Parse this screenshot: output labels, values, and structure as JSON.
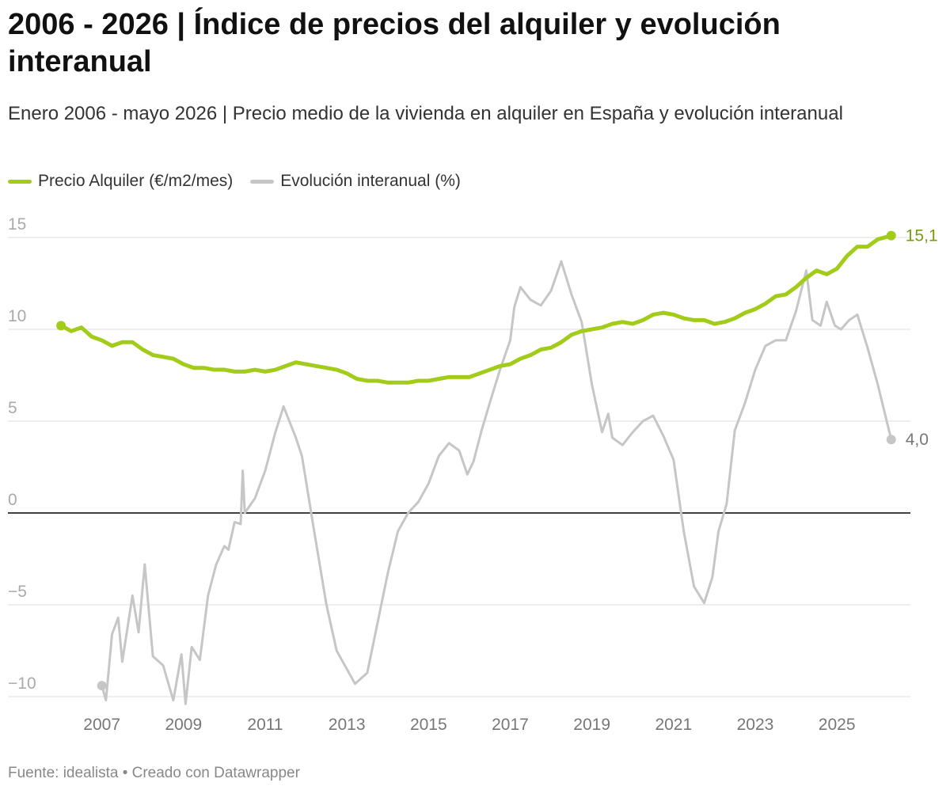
{
  "chart_data": {
    "type": "line",
    "title": "2006 - 2026 | Índice de precios del alquiler y evolución interanual",
    "subtitle": "Enero 2006 - mayo 2026 | Precio medio de la vivienda en alquiler en España y evolución interanual",
    "source": "Fuente: idealista • Creado con Datawrapper",
    "xlim": [
      2004.7,
      2026.8
    ],
    "xticks": [
      2007,
      2009,
      2011,
      2013,
      2015,
      2017,
      2019,
      2021,
      2023,
      2025
    ],
    "ylim": [
      -10,
      15
    ],
    "yticks": [
      {
        "value": -10,
        "label": "−10"
      },
      {
        "value": -5,
        "label": "−5"
      },
      0,
      5,
      10,
      15
    ],
    "grid": true,
    "series": [
      {
        "name": "Precio Alquiler (€/m2/mes)",
        "color": "#a2cb1a",
        "label_color": "#7a9b0e",
        "x": [
          2006.0,
          2006.25,
          2006.5,
          2006.75,
          2007.0,
          2007.25,
          2007.5,
          2007.75,
          2008.0,
          2008.25,
          2008.5,
          2008.75,
          2009.0,
          2009.25,
          2009.5,
          2009.75,
          2010.0,
          2010.25,
          2010.5,
          2010.75,
          2011.0,
          2011.25,
          2011.5,
          2011.75,
          2012.0,
          2012.25,
          2012.5,
          2012.75,
          2013.0,
          2013.25,
          2013.5,
          2013.75,
          2014.0,
          2014.25,
          2014.5,
          2014.75,
          2015.0,
          2015.25,
          2015.5,
          2015.75,
          2016.0,
          2016.25,
          2016.5,
          2016.75,
          2017.0,
          2017.25,
          2017.5,
          2017.75,
          2018.0,
          2018.25,
          2018.5,
          2018.75,
          2019.0,
          2019.25,
          2019.5,
          2019.75,
          2020.0,
          2020.25,
          2020.5,
          2020.75,
          2021.0,
          2021.25,
          2021.5,
          2021.75,
          2022.0,
          2022.25,
          2022.5,
          2022.75,
          2023.0,
          2023.25,
          2023.5,
          2023.75,
          2024.0,
          2024.25,
          2024.5,
          2024.75,
          2025.0,
          2025.25,
          2025.5,
          2025.75,
          2026.0,
          2026.33
        ],
        "values": [
          10.2,
          9.9,
          10.1,
          9.6,
          9.4,
          9.1,
          9.3,
          9.3,
          8.9,
          8.6,
          8.5,
          8.4,
          8.1,
          7.9,
          7.9,
          7.8,
          7.8,
          7.7,
          7.7,
          7.8,
          7.7,
          7.8,
          8.0,
          8.2,
          8.1,
          8.0,
          7.9,
          7.8,
          7.6,
          7.3,
          7.2,
          7.2,
          7.1,
          7.1,
          7.1,
          7.2,
          7.2,
          7.3,
          7.4,
          7.4,
          7.4,
          7.6,
          7.8,
          8.0,
          8.1,
          8.4,
          8.6,
          8.9,
          9.0,
          9.3,
          9.7,
          9.9,
          10.0,
          10.1,
          10.3,
          10.4,
          10.3,
          10.5,
          10.8,
          10.9,
          10.8,
          10.6,
          10.5,
          10.5,
          10.3,
          10.4,
          10.6,
          10.9,
          11.1,
          11.4,
          11.8,
          11.9,
          12.3,
          12.8,
          13.2,
          13.0,
          13.3,
          14.0,
          14.5,
          14.5,
          14.9,
          15.1
        ],
        "value_labels": [
          null,
          null,
          null,
          null,
          null,
          null,
          null,
          null,
          null,
          null,
          null,
          null,
          null,
          null,
          null,
          null,
          null,
          null,
          null,
          null,
          null,
          null,
          null,
          null,
          null,
          null,
          null,
          null,
          null,
          null,
          null,
          null,
          null,
          null,
          null,
          null,
          null,
          null,
          null,
          null,
          null,
          null,
          null,
          null,
          null,
          null,
          null,
          null,
          null,
          null,
          null,
          null,
          null,
          null,
          null,
          null,
          null,
          null,
          null,
          null,
          null,
          null,
          null,
          null,
          null,
          null,
          null,
          null,
          null,
          null,
          null,
          null,
          null,
          null,
          null,
          null,
          null,
          null,
          null,
          null,
          null,
          "15,1"
        ]
      },
      {
        "name": "Evolución interanual (%)",
        "color": "#c6c6c6",
        "label_color": "#777777",
        "x": [
          2007.0,
          2007.1,
          2007.25,
          2007.4,
          2007.5,
          2007.75,
          2007.9,
          2008.05,
          2008.25,
          2008.5,
          2008.75,
          2008.95,
          2009.05,
          2009.2,
          2009.4,
          2009.6,
          2009.8,
          2010.0,
          2010.1,
          2010.25,
          2010.4,
          2010.45,
          2010.5,
          2010.75,
          2011.0,
          2011.25,
          2011.45,
          2011.75,
          2011.9,
          2012.2,
          2012.5,
          2012.75,
          2013.0,
          2013.2,
          2013.5,
          2013.75,
          2014.0,
          2014.25,
          2014.5,
          2014.75,
          2015.0,
          2015.25,
          2015.5,
          2015.75,
          2015.95,
          2016.1,
          2016.3,
          2016.5,
          2016.75,
          2017.0,
          2017.1,
          2017.25,
          2017.5,
          2017.75,
          2018.0,
          2018.25,
          2018.5,
          2018.75,
          2019.0,
          2019.25,
          2019.4,
          2019.5,
          2019.75,
          2020.0,
          2020.25,
          2020.5,
          2020.75,
          2021.0,
          2021.25,
          2021.5,
          2021.75,
          2021.95,
          2022.1,
          2022.3,
          2022.5,
          2022.75,
          2023.0,
          2023.25,
          2023.5,
          2023.75,
          2024.0,
          2024.25,
          2024.4,
          2024.6,
          2024.75,
          2024.95,
          2025.1,
          2025.3,
          2025.5,
          2025.75,
          2026.0,
          2026.33
        ],
        "values": [
          -9.4,
          -10.2,
          -6.6,
          -5.7,
          -8.1,
          -4.5,
          -6.5,
          -2.8,
          -7.8,
          -8.3,
          -10.2,
          -7.7,
          -10.4,
          -7.3,
          -8.0,
          -4.5,
          -2.8,
          -1.8,
          -2.0,
          -0.5,
          -0.6,
          2.3,
          0.0,
          0.8,
          2.3,
          4.4,
          5.8,
          4.1,
          3.1,
          -1.0,
          -5.0,
          -7.5,
          -8.5,
          -9.3,
          -8.7,
          -6.0,
          -3.3,
          -1.0,
          0.0,
          0.6,
          1.6,
          3.1,
          3.8,
          3.4,
          2.1,
          2.8,
          4.5,
          6.0,
          7.8,
          9.4,
          11.2,
          12.3,
          11.6,
          11.3,
          12.1,
          13.7,
          11.9,
          10.4,
          7.0,
          4.4,
          5.4,
          4.1,
          3.7,
          4.4,
          5.0,
          5.3,
          4.2,
          2.9,
          -1.0,
          -4.0,
          -4.9,
          -3.5,
          -1.0,
          0.5,
          4.5,
          6.0,
          7.8,
          9.1,
          9.4,
          9.4,
          11.0,
          13.2,
          10.5,
          10.2,
          11.5,
          10.2,
          10.0,
          10.5,
          10.8,
          9.0,
          7.0,
          4.0
        ],
        "value_labels": [
          null,
          null,
          null,
          null,
          null,
          null,
          null,
          null,
          null,
          null,
          null,
          null,
          null,
          null,
          null,
          null,
          null,
          null,
          null,
          null,
          null,
          null,
          null,
          null,
          null,
          null,
          null,
          null,
          null,
          null,
          null,
          null,
          null,
          null,
          null,
          null,
          null,
          null,
          null,
          null,
          null,
          null,
          null,
          null,
          null,
          null,
          null,
          null,
          null,
          null,
          null,
          null,
          null,
          null,
          null,
          null,
          null,
          null,
          null,
          null,
          null,
          null,
          null,
          null,
          null,
          null,
          null,
          null,
          null,
          null,
          null,
          null,
          null,
          null,
          null,
          null,
          null,
          null,
          null,
          null,
          null,
          null,
          null,
          null,
          null,
          null,
          null,
          null,
          null,
          null,
          null,
          "4,0"
        ]
      }
    ]
  }
}
